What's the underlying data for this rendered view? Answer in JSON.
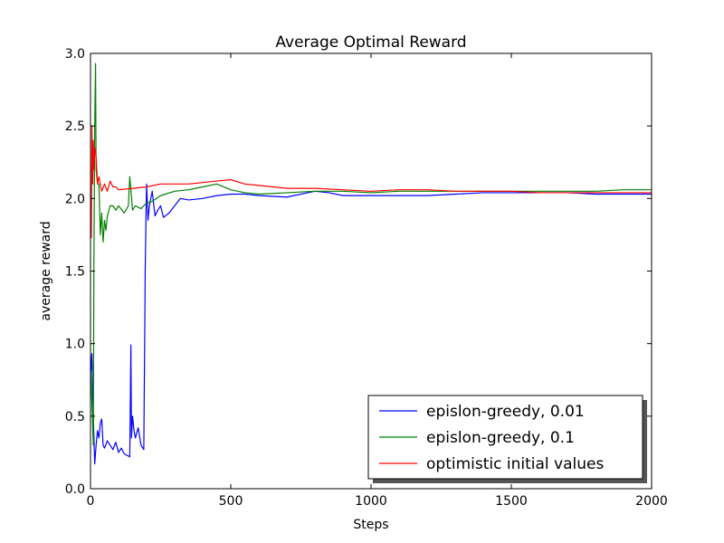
{
  "chart_data": {
    "type": "line",
    "title": "Average Optimal Reward",
    "xlabel": "Steps",
    "ylabel": "average reward",
    "xlim": [
      0,
      2000
    ],
    "ylim": [
      0.0,
      3.0
    ],
    "xticks": [
      0,
      500,
      1000,
      1500,
      2000
    ],
    "yticks": [
      0.0,
      0.5,
      1.0,
      1.5,
      2.0,
      2.5,
      3.0
    ],
    "xtick_labels": [
      "0",
      "500",
      "1000",
      "1500",
      "2000"
    ],
    "ytick_labels": [
      "0.0",
      "0.5",
      "1.0",
      "1.5",
      "2.0",
      "2.5",
      "3.0"
    ],
    "grid": false,
    "legend_position": "lower-right",
    "series": [
      {
        "name": "epislon-greedy, 0.01",
        "color": "#0000ff",
        "x": [
          1,
          5,
          10,
          15,
          20,
          25,
          30,
          35,
          40,
          45,
          50,
          60,
          70,
          80,
          90,
          100,
          110,
          120,
          130,
          140,
          144,
          146,
          150,
          155,
          160,
          170,
          180,
          190,
          195,
          198,
          200,
          205,
          210,
          220,
          230,
          240,
          250,
          260,
          280,
          300,
          320,
          350,
          400,
          450,
          500,
          550,
          600,
          700,
          800,
          850,
          900,
          1000,
          1100,
          1200,
          1300,
          1400,
          1500,
          1600,
          1700,
          1800,
          1900,
          2000
        ],
        "y": [
          0.8,
          0.93,
          0.5,
          0.17,
          0.3,
          0.4,
          0.35,
          0.45,
          0.48,
          0.3,
          0.28,
          0.33,
          0.3,
          0.27,
          0.32,
          0.25,
          0.28,
          0.24,
          0.23,
          0.22,
          0.99,
          0.35,
          0.5,
          0.4,
          0.35,
          0.42,
          0.3,
          0.27,
          1.5,
          1.9,
          2.1,
          1.85,
          1.95,
          2.05,
          1.88,
          1.92,
          1.95,
          1.87,
          1.9,
          1.95,
          2.0,
          1.99,
          2.0,
          2.02,
          2.03,
          2.03,
          2.02,
          2.01,
          2.05,
          2.04,
          2.02,
          2.02,
          2.02,
          2.02,
          2.03,
          2.04,
          2.04,
          2.04,
          2.04,
          2.03,
          2.03,
          2.03
        ]
      },
      {
        "name": "epislon-greedy, 0.1",
        "color": "#008000",
        "x": [
          1,
          5,
          10,
          12,
          15,
          18,
          20,
          25,
          30,
          35,
          40,
          45,
          50,
          55,
          60,
          70,
          80,
          90,
          100,
          120,
          135,
          140,
          150,
          160,
          180,
          200,
          220,
          250,
          300,
          350,
          400,
          450,
          500,
          550,
          600,
          700,
          800,
          900,
          1000,
          1100,
          1200,
          1300,
          1400,
          1500,
          1600,
          1700,
          1800,
          1900,
          2000
        ],
        "y": [
          0.8,
          0.6,
          0.3,
          1.5,
          2.5,
          2.93,
          2.2,
          2.1,
          2.1,
          1.75,
          1.9,
          1.7,
          1.85,
          1.78,
          1.88,
          1.95,
          1.95,
          1.92,
          1.95,
          1.9,
          1.95,
          2.15,
          1.92,
          1.95,
          1.93,
          1.97,
          1.98,
          2.02,
          2.05,
          2.06,
          2.08,
          2.1,
          2.06,
          2.04,
          2.03,
          2.04,
          2.05,
          2.05,
          2.04,
          2.05,
          2.05,
          2.05,
          2.05,
          2.05,
          2.05,
          2.05,
          2.05,
          2.06,
          2.06
        ]
      },
      {
        "name": "optimistic initial values",
        "color": "#ff0000",
        "x": [
          1,
          3,
          5,
          8,
          10,
          12,
          15,
          20,
          25,
          30,
          40,
          50,
          60,
          70,
          80,
          90,
          100,
          150,
          200,
          250,
          300,
          350,
          400,
          450,
          500,
          550,
          600,
          700,
          800,
          900,
          1000,
          1100,
          1200,
          1300,
          1400,
          1500,
          1600,
          1700,
          1800,
          1900,
          2000
        ],
        "y": [
          2.0,
          1.73,
          2.5,
          2.1,
          2.4,
          2.2,
          2.35,
          2.28,
          2.1,
          2.15,
          2.05,
          2.1,
          2.05,
          2.12,
          2.08,
          2.08,
          2.06,
          2.07,
          2.08,
          2.1,
          2.1,
          2.1,
          2.11,
          2.12,
          2.13,
          2.1,
          2.09,
          2.07,
          2.07,
          2.06,
          2.05,
          2.06,
          2.06,
          2.05,
          2.05,
          2.05,
          2.04,
          2.04,
          2.04,
          2.04,
          2.04
        ]
      }
    ]
  }
}
